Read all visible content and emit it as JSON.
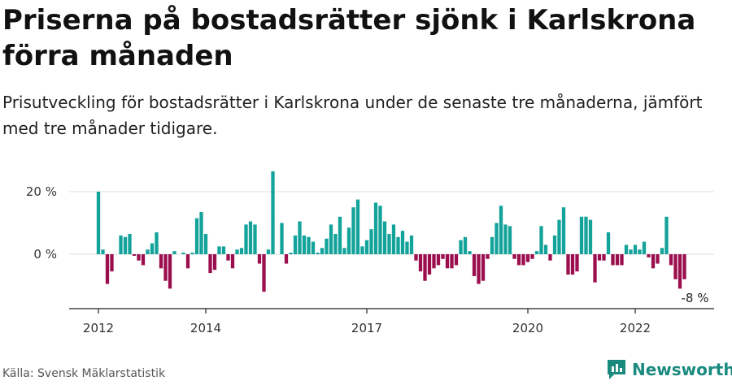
{
  "header": {
    "title": "Priserna på bostadsrätter sjönk i Karlskrona förra månaden",
    "subtitle": "Prisutveckling för bostadsrätter i Karlskrona under de senaste tre månaderna, jämfört med tre månader tidigare."
  },
  "footer": {
    "source": "Källa: Svensk Mäklarstatistik",
    "brand": "Newsworthy"
  },
  "colors": {
    "positive": "#13a39a",
    "negative": "#9b0f4e",
    "axis": "#222222",
    "grid": "#dddddd",
    "brand": "#1a8a7f"
  },
  "chart_data": {
    "type": "bar",
    "x_unit": "month",
    "x_start": "2012-01",
    "y_unit": "%",
    "ylim": [
      -17,
      29
    ],
    "yticks": [
      {
        "value": 20,
        "label": "20 %"
      },
      {
        "value": 0,
        "label": "0 %"
      }
    ],
    "xticks": [
      {
        "date": "2012-01",
        "label": "2012"
      },
      {
        "date": "2014-01",
        "label": "2014"
      },
      {
        "date": "2017-01",
        "label": "2017"
      },
      {
        "date": "2020-01",
        "label": "2020"
      },
      {
        "date": "2022-01",
        "label": "2022"
      }
    ],
    "annotation": {
      "date": "2022-12",
      "label": "-8 %"
    },
    "x": [
      "2012-01",
      "2012-02",
      "2012-03",
      "2012-04",
      "2012-05",
      "2012-06",
      "2012-07",
      "2012-08",
      "2012-09",
      "2012-10",
      "2012-11",
      "2012-12",
      "2013-01",
      "2013-02",
      "2013-03",
      "2013-04",
      "2013-05",
      "2013-06",
      "2013-07",
      "2013-08",
      "2013-09",
      "2013-10",
      "2013-11",
      "2013-12",
      "2014-01",
      "2014-02",
      "2014-03",
      "2014-04",
      "2014-05",
      "2014-06",
      "2014-07",
      "2014-08",
      "2014-09",
      "2014-10",
      "2014-11",
      "2014-12",
      "2015-01",
      "2015-02",
      "2015-03",
      "2015-04",
      "2015-05",
      "2015-06",
      "2015-07",
      "2015-08",
      "2015-09",
      "2015-10",
      "2015-11",
      "2015-12",
      "2016-01",
      "2016-02",
      "2016-03",
      "2016-04",
      "2016-05",
      "2016-06",
      "2016-07",
      "2016-08",
      "2016-09",
      "2016-10",
      "2016-11",
      "2016-12",
      "2017-01",
      "2017-02",
      "2017-03",
      "2017-04",
      "2017-05",
      "2017-06",
      "2017-07",
      "2017-08",
      "2017-09",
      "2017-10",
      "2017-11",
      "2017-12",
      "2018-01",
      "2018-02",
      "2018-03",
      "2018-04",
      "2018-05",
      "2018-06",
      "2018-07",
      "2018-08",
      "2018-09",
      "2018-10",
      "2018-11",
      "2018-12",
      "2019-01",
      "2019-02",
      "2019-03",
      "2019-04",
      "2019-05",
      "2019-06",
      "2019-07",
      "2019-08",
      "2019-09",
      "2019-10",
      "2019-11",
      "2019-12",
      "2020-01",
      "2020-02",
      "2020-03",
      "2020-04",
      "2020-05",
      "2020-06",
      "2020-07",
      "2020-08",
      "2020-09",
      "2020-10",
      "2020-11",
      "2020-12",
      "2021-01",
      "2021-02",
      "2021-03",
      "2021-04",
      "2021-05",
      "2021-06",
      "2021-07",
      "2021-08",
      "2021-09",
      "2021-10",
      "2021-11",
      "2021-12",
      "2022-01",
      "2022-02",
      "2022-03",
      "2022-04",
      "2022-05",
      "2022-06",
      "2022-07",
      "2022-08",
      "2022-09",
      "2022-10",
      "2022-11",
      "2022-12"
    ],
    "values": [
      20,
      1.5,
      -9.5,
      -5.5,
      0,
      6,
      5.5,
      6.5,
      -0.5,
      -2,
      -3.5,
      1.5,
      3.5,
      7,
      -4.5,
      -8.5,
      -11,
      1,
      0,
      0.5,
      -4.5,
      0.5,
      11.5,
      13.5,
      6.5,
      -6,
      -5,
      2.5,
      2.5,
      -2,
      -4.5,
      1.5,
      2,
      9.5,
      10.5,
      9.5,
      -3,
      -12,
      1.5,
      26.5,
      0,
      10,
      -3,
      0.5,
      6,
      10.5,
      6,
      5.5,
      4,
      0.5,
      2,
      5,
      9.5,
      6.5,
      12,
      2,
      8.5,
      15,
      17.5,
      2.5,
      4.5,
      8,
      16.5,
      15.5,
      10.5,
      6.5,
      9.5,
      5.5,
      7.5,
      4,
      6,
      -2,
      -5.5,
      -8.5,
      -6.5,
      -4.5,
      -3.5,
      -1.5,
      -4.5,
      -4.5,
      -3.5,
      4.5,
      5.5,
      1,
      -7,
      -9.5,
      -8.5,
      -1.5,
      5.5,
      10,
      15.5,
      9.5,
      9,
      -1.5,
      -3.5,
      -3.5,
      -2.5,
      -1.5,
      1,
      9,
      3,
      -2,
      6,
      11,
      15,
      -6.5,
      -6.5,
      -5.5,
      12,
      12,
      11,
      -9,
      -2,
      -2,
      7,
      -3.5,
      -3.5,
      -3.5,
      3,
      1.5,
      3,
      1.5,
      4,
      -1,
      -4.5,
      -3,
      2,
      12,
      -3.5,
      -8,
      -11,
      -8
    ]
  }
}
